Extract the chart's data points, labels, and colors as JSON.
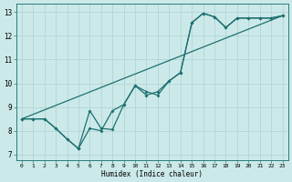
{
  "title": "",
  "xlabel": "Humidex (Indice chaleur)",
  "ylabel": "",
  "bg_color": "#cce9e9",
  "grid_color": "#aed0d0",
  "line_color": "#1e7070",
  "xlim": [
    -0.5,
    23.5
  ],
  "ylim": [
    6.75,
    13.35
  ],
  "xticks": [
    0,
    1,
    2,
    3,
    4,
    5,
    6,
    7,
    8,
    9,
    10,
    11,
    12,
    13,
    14,
    15,
    16,
    17,
    18,
    19,
    20,
    21,
    22,
    23
  ],
  "yticks": [
    7,
    8,
    9,
    10,
    11,
    12,
    13
  ],
  "line1_x": [
    0,
    1,
    2,
    3,
    4,
    5,
    5,
    6,
    7,
    8,
    9,
    10,
    11,
    12,
    13,
    14,
    15,
    16,
    17,
    18,
    19,
    20,
    21,
    22,
    23
  ],
  "line1_y": [
    8.5,
    8.5,
    8.5,
    8.1,
    7.65,
    7.25,
    7.25,
    8.85,
    8.1,
    8.05,
    9.1,
    9.9,
    9.65,
    9.5,
    10.1,
    10.45,
    12.55,
    12.95,
    12.8,
    12.35,
    12.75,
    12.75,
    12.75,
    12.75,
    12.85
  ],
  "line2_x": [
    0,
    1,
    2,
    3,
    4,
    5,
    6,
    7,
    8,
    9,
    10,
    11,
    12,
    13,
    14,
    15,
    16,
    17,
    18,
    19,
    20,
    21,
    22,
    23
  ],
  "line2_y": [
    8.5,
    8.5,
    8.5,
    8.1,
    7.65,
    7.25,
    8.1,
    8.0,
    8.85,
    9.1,
    9.9,
    9.5,
    9.65,
    10.1,
    10.45,
    12.55,
    12.95,
    12.8,
    12.35,
    12.75,
    12.75,
    12.75,
    12.75,
    12.85
  ],
  "line3_x": [
    0,
    23
  ],
  "line3_y": [
    8.5,
    12.85
  ]
}
